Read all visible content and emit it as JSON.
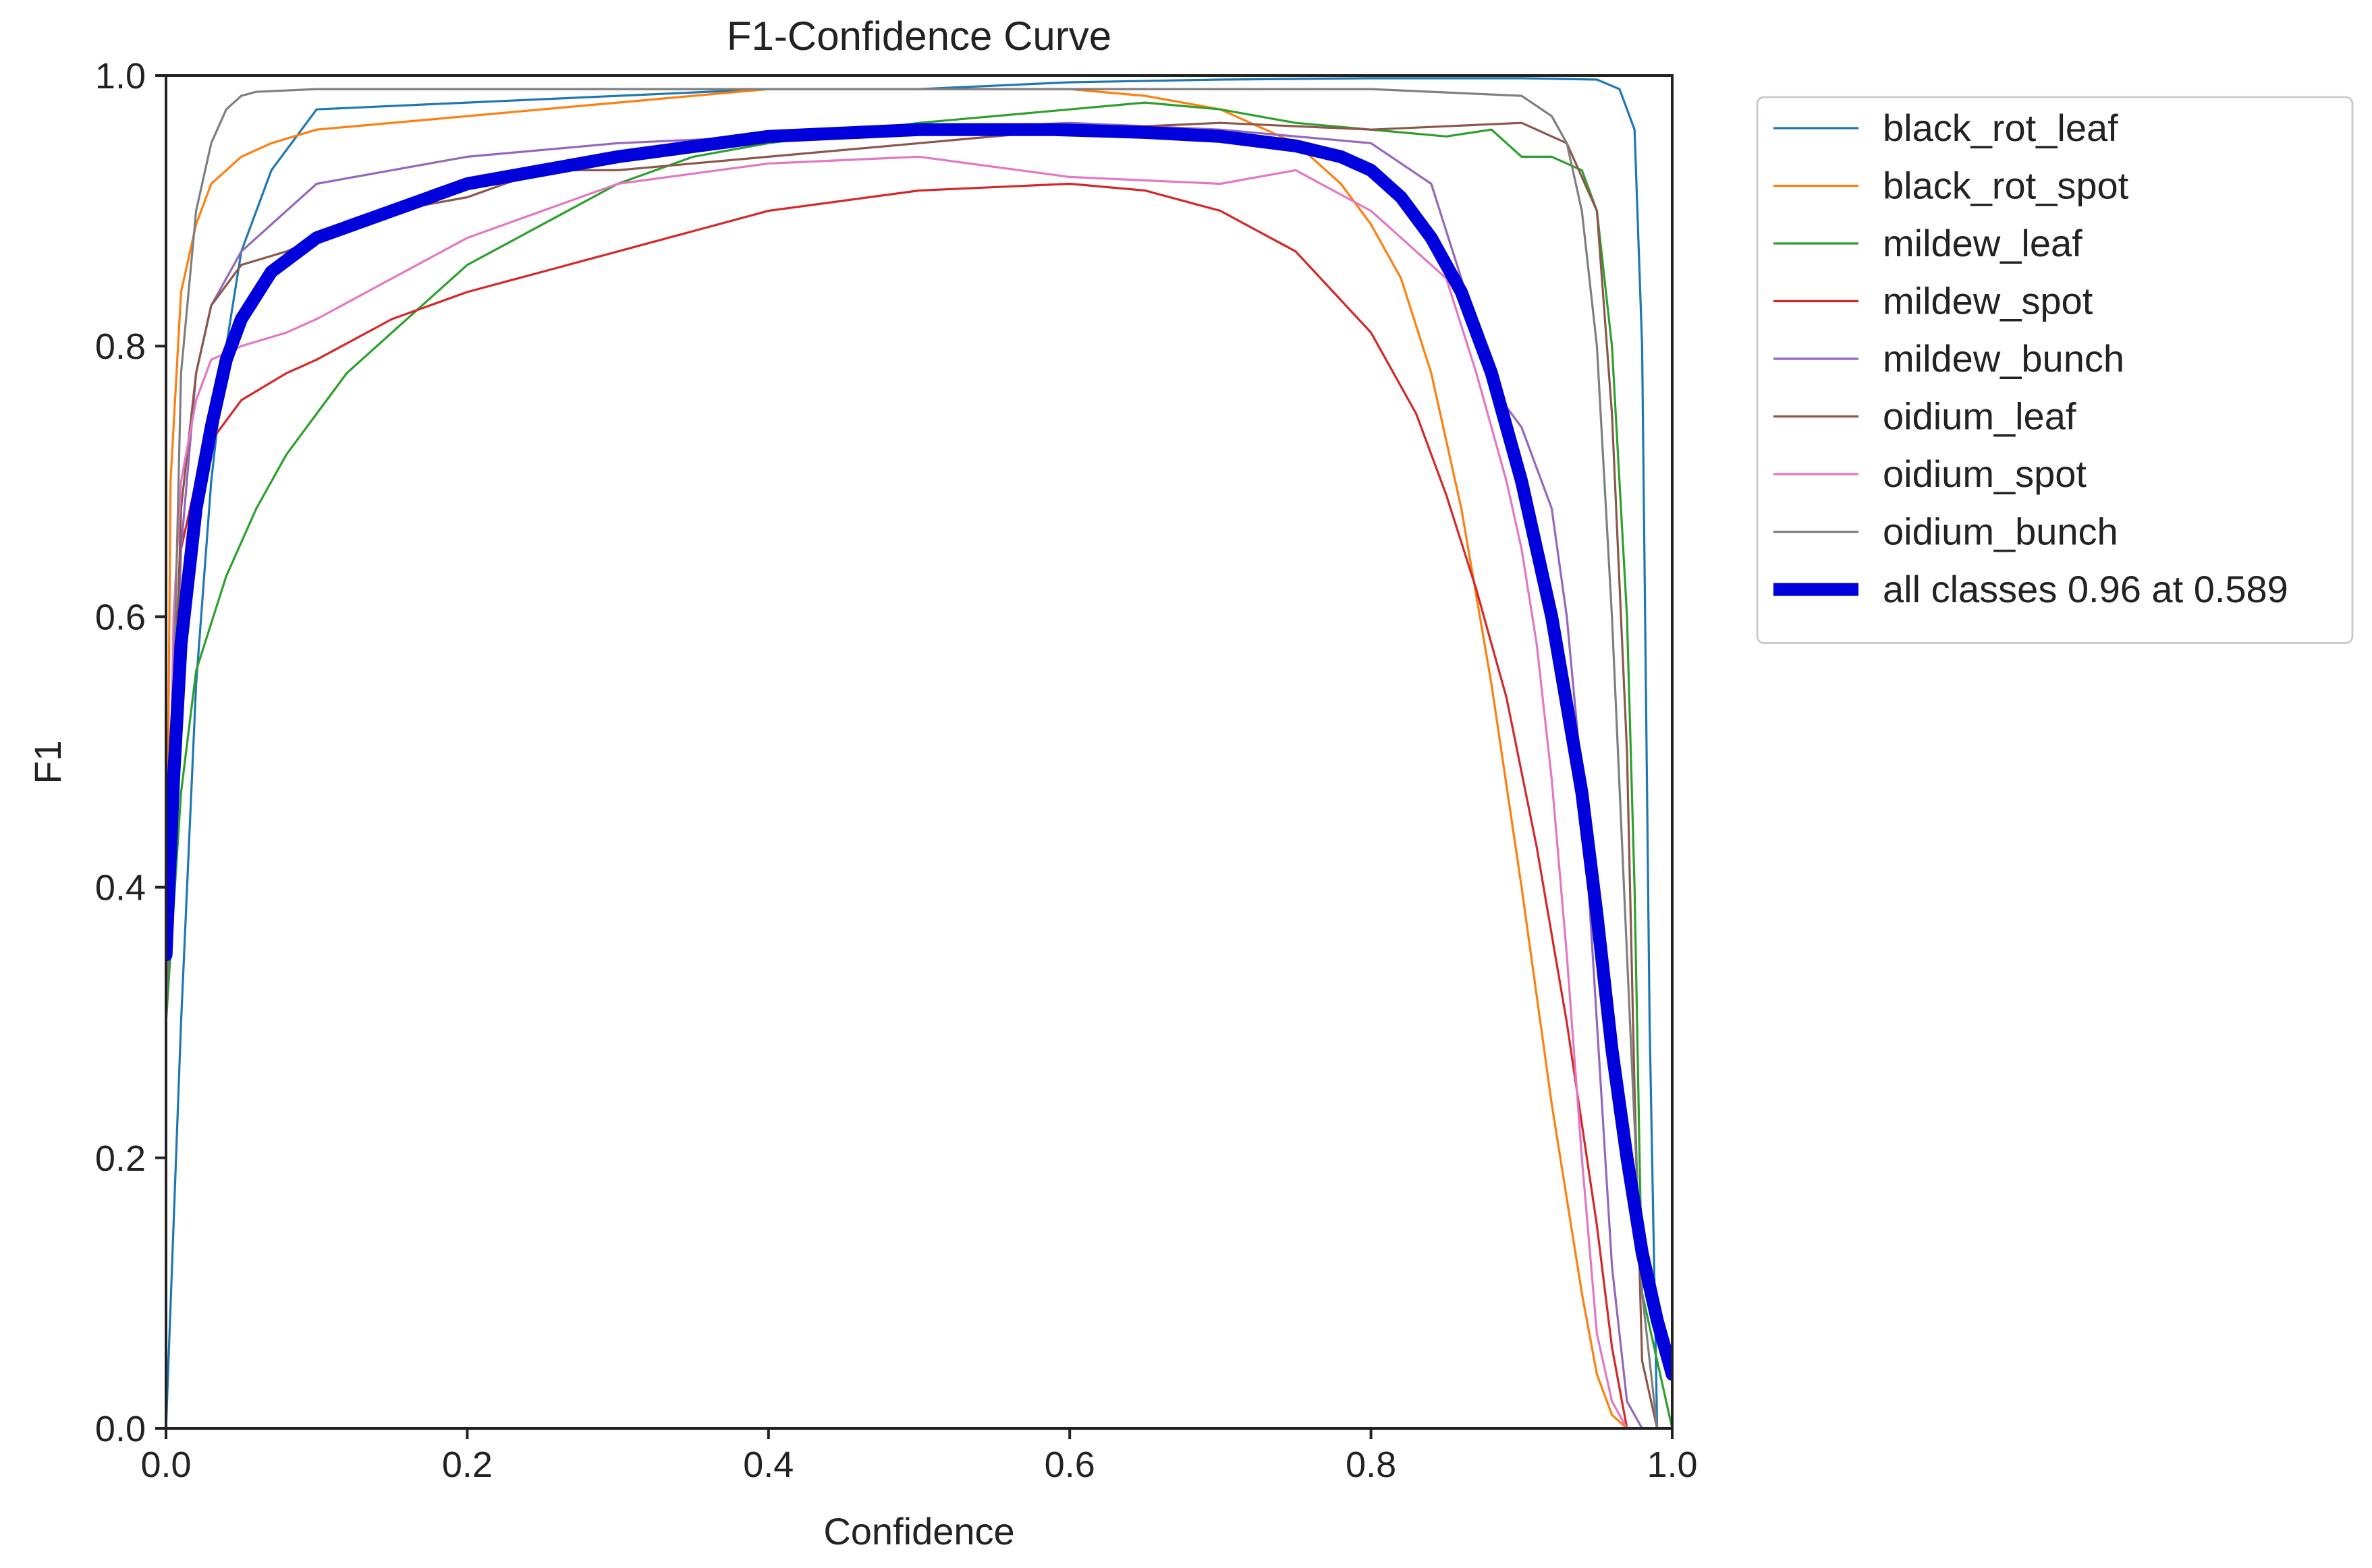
{
  "chart_data": {
    "type": "line",
    "title": "F1-Confidence Curve",
    "xlabel": "Confidence",
    "ylabel": "F1",
    "xlim": [
      0.0,
      1.0
    ],
    "ylim": [
      0.0,
      1.0
    ],
    "xticks": [
      "0.0",
      "0.2",
      "0.4",
      "0.6",
      "0.8",
      "1.0"
    ],
    "yticks": [
      "0.0",
      "0.2",
      "0.4",
      "0.6",
      "0.8",
      "1.0"
    ],
    "grid": false,
    "legend_position": "outside-right-top",
    "series": [
      {
        "name": "black_rot_leaf",
        "color": "#1f77b4",
        "width": 2,
        "x": [
          0.0,
          0.01,
          0.02,
          0.03,
          0.04,
          0.05,
          0.07,
          0.09,
          0.1,
          0.2,
          0.3,
          0.4,
          0.5,
          0.6,
          0.7,
          0.8,
          0.9,
          0.95,
          0.965,
          0.975,
          0.98,
          0.985,
          0.99,
          1.0
        ],
        "y": [
          0.0,
          0.3,
          0.55,
          0.7,
          0.8,
          0.87,
          0.93,
          0.96,
          0.975,
          0.98,
          0.985,
          0.99,
          0.99,
          0.995,
          0.997,
          0.998,
          0.998,
          0.997,
          0.99,
          0.96,
          0.8,
          0.3,
          0.0,
          0.0
        ]
      },
      {
        "name": "black_rot_spot",
        "color": "#ff7f0e",
        "width": 2,
        "x": [
          0.0,
          0.003,
          0.01,
          0.02,
          0.03,
          0.05,
          0.07,
          0.1,
          0.2,
          0.3,
          0.4,
          0.5,
          0.55,
          0.6,
          0.65,
          0.7,
          0.75,
          0.78,
          0.8,
          0.82,
          0.84,
          0.86,
          0.88,
          0.9,
          0.92,
          0.94,
          0.95,
          0.96,
          0.97,
          1.0
        ],
        "y": [
          0.3,
          0.7,
          0.84,
          0.89,
          0.92,
          0.94,
          0.95,
          0.96,
          0.97,
          0.98,
          0.99,
          0.99,
          0.99,
          0.99,
          0.985,
          0.975,
          0.95,
          0.92,
          0.89,
          0.85,
          0.78,
          0.68,
          0.55,
          0.4,
          0.24,
          0.1,
          0.04,
          0.01,
          0.0,
          0.0
        ]
      },
      {
        "name": "mildew_leaf",
        "color": "#2ca02c",
        "width": 2,
        "x": [
          0.0,
          0.01,
          0.02,
          0.04,
          0.06,
          0.08,
          0.1,
          0.12,
          0.15,
          0.2,
          0.25,
          0.3,
          0.35,
          0.4,
          0.5,
          0.6,
          0.65,
          0.7,
          0.75,
          0.8,
          0.85,
          0.88,
          0.9,
          0.92,
          0.94,
          0.95,
          0.96,
          0.97,
          0.975,
          0.98,
          1.0
        ],
        "y": [
          0.3,
          0.47,
          0.56,
          0.63,
          0.68,
          0.72,
          0.75,
          0.78,
          0.81,
          0.86,
          0.89,
          0.92,
          0.94,
          0.95,
          0.965,
          0.975,
          0.98,
          0.975,
          0.965,
          0.96,
          0.955,
          0.96,
          0.94,
          0.94,
          0.93,
          0.9,
          0.8,
          0.6,
          0.4,
          0.1,
          0.0
        ]
      },
      {
        "name": "mildew_spot",
        "color": "#d62728",
        "width": 2,
        "x": [
          0.0,
          0.005,
          0.01,
          0.02,
          0.03,
          0.05,
          0.08,
          0.1,
          0.15,
          0.2,
          0.3,
          0.4,
          0.5,
          0.6,
          0.65,
          0.7,
          0.75,
          0.8,
          0.83,
          0.85,
          0.87,
          0.89,
          0.91,
          0.93,
          0.95,
          0.96,
          0.97,
          1.0
        ],
        "y": [
          0.3,
          0.55,
          0.65,
          0.7,
          0.73,
          0.76,
          0.78,
          0.79,
          0.82,
          0.84,
          0.87,
          0.9,
          0.915,
          0.92,
          0.915,
          0.9,
          0.87,
          0.81,
          0.75,
          0.69,
          0.62,
          0.54,
          0.43,
          0.3,
          0.15,
          0.06,
          0.0,
          0.0
        ]
      },
      {
        "name": "mildew_bunch",
        "color": "#9467bd",
        "width": 2,
        "x": [
          0.0,
          0.01,
          0.02,
          0.03,
          0.05,
          0.08,
          0.1,
          0.15,
          0.2,
          0.3,
          0.4,
          0.5,
          0.6,
          0.7,
          0.8,
          0.84,
          0.86,
          0.88,
          0.9,
          0.92,
          0.93,
          0.94,
          0.95,
          0.96,
          0.97,
          0.98,
          1.0
        ],
        "y": [
          0.3,
          0.65,
          0.78,
          0.83,
          0.87,
          0.9,
          0.92,
          0.93,
          0.94,
          0.95,
          0.955,
          0.96,
          0.965,
          0.96,
          0.95,
          0.92,
          0.85,
          0.77,
          0.74,
          0.68,
          0.6,
          0.48,
          0.3,
          0.12,
          0.02,
          0.0,
          0.0
        ]
      },
      {
        "name": "oidium_leaf",
        "color": "#8c564b",
        "width": 2,
        "x": [
          0.0,
          0.01,
          0.02,
          0.03,
          0.05,
          0.08,
          0.1,
          0.15,
          0.2,
          0.25,
          0.3,
          0.4,
          0.5,
          0.6,
          0.7,
          0.8,
          0.9,
          0.93,
          0.95,
          0.96,
          0.97,
          0.975,
          0.98,
          0.99,
          1.0
        ],
        "y": [
          0.3,
          0.68,
          0.78,
          0.83,
          0.86,
          0.87,
          0.88,
          0.9,
          0.91,
          0.93,
          0.93,
          0.94,
          0.95,
          0.96,
          0.965,
          0.96,
          0.965,
          0.95,
          0.9,
          0.75,
          0.5,
          0.25,
          0.05,
          0.0,
          0.0
        ]
      },
      {
        "name": "oidium_spot",
        "color": "#e377c2",
        "width": 2,
        "x": [
          0.0,
          0.005,
          0.01,
          0.02,
          0.03,
          0.05,
          0.08,
          0.1,
          0.15,
          0.2,
          0.3,
          0.4,
          0.5,
          0.6,
          0.7,
          0.75,
          0.8,
          0.85,
          0.87,
          0.89,
          0.9,
          0.91,
          0.92,
          0.93,
          0.94,
          0.95,
          0.96,
          0.97,
          1.0
        ],
        "y": [
          0.3,
          0.6,
          0.7,
          0.76,
          0.79,
          0.8,
          0.81,
          0.82,
          0.85,
          0.88,
          0.92,
          0.935,
          0.94,
          0.925,
          0.92,
          0.93,
          0.9,
          0.85,
          0.78,
          0.7,
          0.65,
          0.58,
          0.48,
          0.35,
          0.2,
          0.07,
          0.02,
          0.0,
          0.0
        ]
      },
      {
        "name": "oidium_bunch",
        "color": "#7f7f7f",
        "width": 2,
        "x": [
          0.0,
          0.01,
          0.02,
          0.03,
          0.04,
          0.05,
          0.06,
          0.1,
          0.2,
          0.3,
          0.4,
          0.5,
          0.6,
          0.7,
          0.8,
          0.9,
          0.92,
          0.93,
          0.94,
          0.95,
          0.96,
          0.97,
          0.98,
          0.99,
          1.0
        ],
        "y": [
          0.3,
          0.78,
          0.9,
          0.95,
          0.975,
          0.985,
          0.988,
          0.99,
          0.99,
          0.99,
          0.99,
          0.99,
          0.99,
          0.99,
          0.99,
          0.985,
          0.97,
          0.95,
          0.9,
          0.8,
          0.6,
          0.35,
          0.1,
          0.0,
          0.0
        ]
      },
      {
        "name": "all classes 0.96 at 0.589",
        "color": "#0000dd",
        "width": 12,
        "x": [
          0.0,
          0.005,
          0.01,
          0.02,
          0.03,
          0.04,
          0.05,
          0.07,
          0.1,
          0.15,
          0.2,
          0.3,
          0.4,
          0.5,
          0.589,
          0.65,
          0.7,
          0.75,
          0.78,
          0.8,
          0.82,
          0.84,
          0.86,
          0.88,
          0.9,
          0.92,
          0.94,
          0.95,
          0.96,
          0.97,
          0.98,
          0.99,
          1.0
        ],
        "y": [
          0.35,
          0.48,
          0.58,
          0.68,
          0.74,
          0.79,
          0.82,
          0.855,
          0.88,
          0.9,
          0.92,
          0.94,
          0.955,
          0.96,
          0.96,
          0.958,
          0.955,
          0.948,
          0.94,
          0.93,
          0.91,
          0.88,
          0.84,
          0.78,
          0.7,
          0.6,
          0.47,
          0.38,
          0.28,
          0.2,
          0.13,
          0.08,
          0.04
        ]
      }
    ]
  }
}
